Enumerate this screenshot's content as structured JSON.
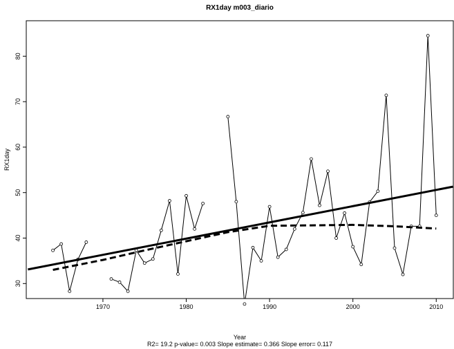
{
  "chart_data": {
    "type": "line",
    "title": "RX1day   m003_diario",
    "x_label": "Year",
    "y_label": "RX1day",
    "subtitle": "R2= 19.2  p-value= 0.003  Slope estimate= 0.366  Slope error= 0.117",
    "xlim": [
      1960.8,
      2012.05
    ],
    "ylim": [
      26.7,
      87.8
    ],
    "xticks": [
      1970,
      1980,
      1990,
      2000,
      2010
    ],
    "yticks": [
      30,
      40,
      50,
      60,
      70,
      80
    ],
    "grid": false,
    "series": [
      {
        "color": "#000000",
        "style": "points-line",
        "x": [
          1964,
          1965,
          1966,
          1967,
          1968,
          1969,
          1970,
          1971,
          1972,
          1973,
          1974,
          1975,
          1976,
          1977,
          1978,
          1979,
          1980,
          1981,
          1982,
          1983,
          1984,
          1985,
          1986,
          1987,
          1988,
          1989,
          1990,
          1991,
          1992,
          1993,
          1994,
          1995,
          1996,
          1997,
          1998,
          1999,
          2000,
          2001,
          2002,
          2003,
          2004,
          2005,
          2006,
          2007,
          2008,
          2009,
          2010
        ],
        "values": [
          37.3,
          38.7,
          28.3,
          35.3,
          39.1,
          null,
          null,
          31.0,
          30.3,
          28.3,
          37.3,
          34.5,
          35.4,
          41.7,
          48.2,
          32.1,
          49.3,
          42.0,
          47.6,
          null,
          null,
          66.7,
          48.0,
          25.5,
          37.9,
          35.0,
          46.9,
          35.8,
          37.5,
          42.0,
          45.6,
          57.4,
          47.2,
          54.7,
          40.0,
          45.5,
          38.1,
          34.2,
          47.9,
          50.3,
          71.4,
          37.8,
          32.0,
          42.6,
          42.6,
          84.5,
          45.0
        ]
      },
      {
        "color": "#000000",
        "style": "solid-thick",
        "x": [
          1961,
          2012
        ],
        "values": [
          33.1,
          51.3
        ]
      },
      {
        "color": "#000000",
        "style": "dashed-thick",
        "x": [
          1964,
          1970,
          1975,
          1980,
          1985,
          1990,
          1995,
          2000,
          2005,
          2010
        ],
        "values": [
          33.0,
          35.2,
          37.3,
          39.3,
          41.3,
          42.7,
          42.8,
          42.9,
          42.6,
          42.1
        ]
      }
    ]
  }
}
